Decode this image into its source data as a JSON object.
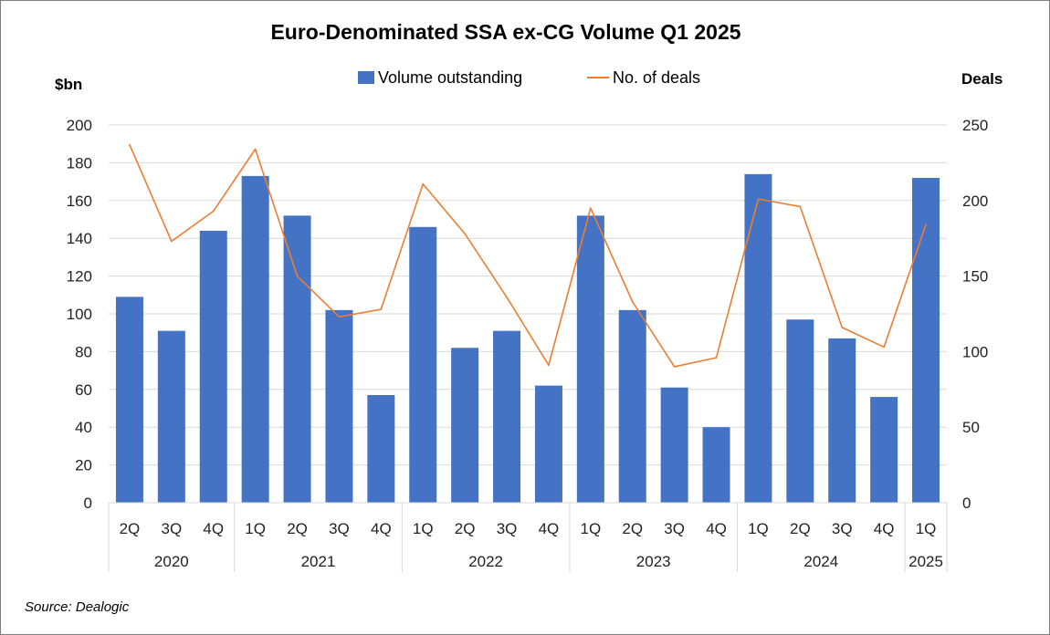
{
  "source": "Source: Dealogic",
  "chart_data": {
    "type": "bar",
    "title": "Euro-Denominated SSA ex-CG Volume Q1 2025",
    "ylabel": "$bn",
    "y2label": "Deals",
    "ylim": [
      0,
      200
    ],
    "y_ticks": [
      0,
      20,
      40,
      60,
      80,
      100,
      120,
      140,
      160,
      180,
      200
    ],
    "y2lim": [
      0,
      250
    ],
    "y2_ticks": [
      0,
      50,
      100,
      150,
      200,
      250
    ],
    "grid": true,
    "legend_position": "top",
    "categories": [
      "2Q",
      "3Q",
      "4Q",
      "1Q",
      "2Q",
      "3Q",
      "4Q",
      "1Q",
      "2Q",
      "3Q",
      "4Q",
      "1Q",
      "2Q",
      "3Q",
      "4Q",
      "1Q",
      "2Q",
      "3Q",
      "4Q",
      "1Q"
    ],
    "year_groups": [
      {
        "year": "2020",
        "span": 3
      },
      {
        "year": "2021",
        "span": 4
      },
      {
        "year": "2022",
        "span": 4
      },
      {
        "year": "2023",
        "span": 4
      },
      {
        "year": "2024",
        "span": 4
      },
      {
        "year": "2025",
        "span": 1
      }
    ],
    "series": [
      {
        "name": "Volume outstanding",
        "type": "bar",
        "axis": "left",
        "color": "#4472c4",
        "values": [
          109,
          91,
          144,
          173,
          152,
          102,
          57,
          146,
          82,
          91,
          62,
          152,
          102,
          61,
          40,
          174,
          97,
          87,
          56,
          172
        ]
      },
      {
        "name": "No. of deals",
        "type": "line",
        "axis": "right",
        "color": "#ed7d31",
        "values": [
          237,
          173,
          193,
          234,
          150,
          123,
          128,
          211,
          178,
          136,
          91,
          195,
          133,
          90,
          96,
          201,
          196,
          116,
          103,
          184
        ]
      }
    ]
  }
}
